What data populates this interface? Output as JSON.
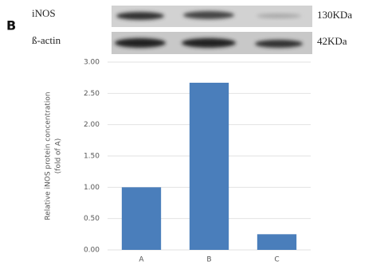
{
  "panel_label": "B",
  "blot": {
    "rows": [
      {
        "label": "iNOS",
        "size": "130KDa"
      },
      {
        "label": "ß-actin",
        "size": "42KDa"
      }
    ]
  },
  "chart_data": {
    "type": "bar",
    "ylabel": [
      "Relative iNOS protein concentration",
      "(fold of A)"
    ],
    "categories": [
      "A",
      "B",
      "C"
    ],
    "values": [
      1.0,
      2.67,
      0.25
    ],
    "color": "#4a7ebb",
    "ylim": [
      0,
      3
    ],
    "yticks": [
      {
        "value": 0,
        "label": "0.00"
      },
      {
        "value": 0.5,
        "label": "0.50"
      },
      {
        "value": 1,
        "label": "1.00"
      },
      {
        "value": 1.5,
        "label": "1.50"
      },
      {
        "value": 2,
        "label": "2.00"
      },
      {
        "value": 2.5,
        "label": "2.50"
      },
      {
        "value": 3,
        "label": "3.00"
      }
    ],
    "grid": true
  }
}
